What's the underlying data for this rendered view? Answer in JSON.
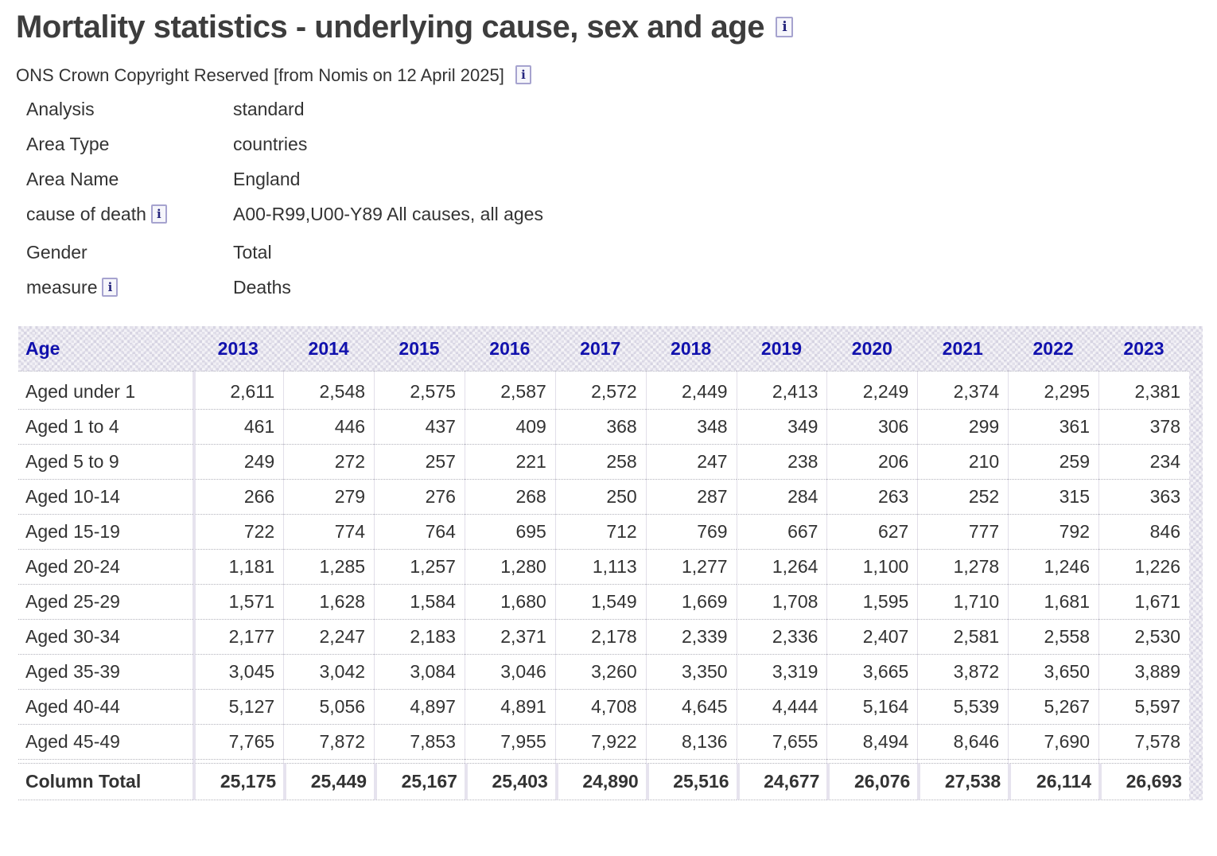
{
  "page": {
    "title": "Mortality statistics - underlying cause, sex and age",
    "copyright": "ONS Crown Copyright Reserved [from Nomis on 12 April 2025]",
    "info_icon_glyph": "i"
  },
  "colors": {
    "link_blue": "#1111ad",
    "title_gray": "#3d3d3d",
    "header_texture_bg": "#e8e5ef",
    "body_text": "#333333"
  },
  "metadata": {
    "rows": [
      {
        "label": "Analysis",
        "value": "standard",
        "label_info": false
      },
      {
        "label": "Area Type",
        "value": "countries",
        "label_info": false
      },
      {
        "label": "Area Name",
        "value": "England",
        "label_info": false
      },
      {
        "label": "cause of death",
        "value": "A00-R99,U00-Y89 All causes, all ages",
        "label_info": true
      },
      {
        "label": "Gender",
        "value": "Total",
        "label_info": false
      },
      {
        "label": "measure",
        "value": "Deaths",
        "label_info": true
      }
    ]
  },
  "table": {
    "age_header": "Age",
    "year_columns": [
      "2013",
      "2014",
      "2015",
      "2016",
      "2017",
      "2018",
      "2019",
      "2020",
      "2021",
      "2022",
      "2023"
    ],
    "rows": [
      {
        "label": "Aged under 1",
        "values": [
          "2,611",
          "2,548",
          "2,575",
          "2,587",
          "2,572",
          "2,449",
          "2,413",
          "2,249",
          "2,374",
          "2,295",
          "2,381"
        ]
      },
      {
        "label": "Aged 1 to 4",
        "values": [
          "461",
          "446",
          "437",
          "409",
          "368",
          "348",
          "349",
          "306",
          "299",
          "361",
          "378"
        ]
      },
      {
        "label": "Aged 5 to 9",
        "values": [
          "249",
          "272",
          "257",
          "221",
          "258",
          "247",
          "238",
          "206",
          "210",
          "259",
          "234"
        ]
      },
      {
        "label": "Aged 10-14",
        "values": [
          "266",
          "279",
          "276",
          "268",
          "250",
          "287",
          "284",
          "263",
          "252",
          "315",
          "363"
        ]
      },
      {
        "label": "Aged 15-19",
        "values": [
          "722",
          "774",
          "764",
          "695",
          "712",
          "769",
          "667",
          "627",
          "777",
          "792",
          "846"
        ]
      },
      {
        "label": "Aged 20-24",
        "values": [
          "1,181",
          "1,285",
          "1,257",
          "1,280",
          "1,113",
          "1,277",
          "1,264",
          "1,100",
          "1,278",
          "1,246",
          "1,226"
        ]
      },
      {
        "label": "Aged 25-29",
        "values": [
          "1,571",
          "1,628",
          "1,584",
          "1,680",
          "1,549",
          "1,669",
          "1,708",
          "1,595",
          "1,710",
          "1,681",
          "1,671"
        ]
      },
      {
        "label": "Aged 30-34",
        "values": [
          "2,177",
          "2,247",
          "2,183",
          "2,371",
          "2,178",
          "2,339",
          "2,336",
          "2,407",
          "2,581",
          "2,558",
          "2,530"
        ]
      },
      {
        "label": "Aged 35-39",
        "values": [
          "3,045",
          "3,042",
          "3,084",
          "3,046",
          "3,260",
          "3,350",
          "3,319",
          "3,665",
          "3,872",
          "3,650",
          "3,889"
        ]
      },
      {
        "label": "Aged 40-44",
        "values": [
          "5,127",
          "5,056",
          "4,897",
          "4,891",
          "4,708",
          "4,645",
          "4,444",
          "5,164",
          "5,539",
          "5,267",
          "5,597"
        ]
      },
      {
        "label": "Aged 45-49",
        "values": [
          "7,765",
          "7,872",
          "7,853",
          "7,955",
          "7,922",
          "8,136",
          "7,655",
          "8,494",
          "8,646",
          "7,690",
          "7,578"
        ]
      }
    ],
    "total_row": {
      "label": "Column Total",
      "values": [
        "25,175",
        "25,449",
        "25,167",
        "25,403",
        "24,890",
        "25,516",
        "24,677",
        "26,076",
        "27,538",
        "26,114",
        "26,693"
      ]
    }
  }
}
